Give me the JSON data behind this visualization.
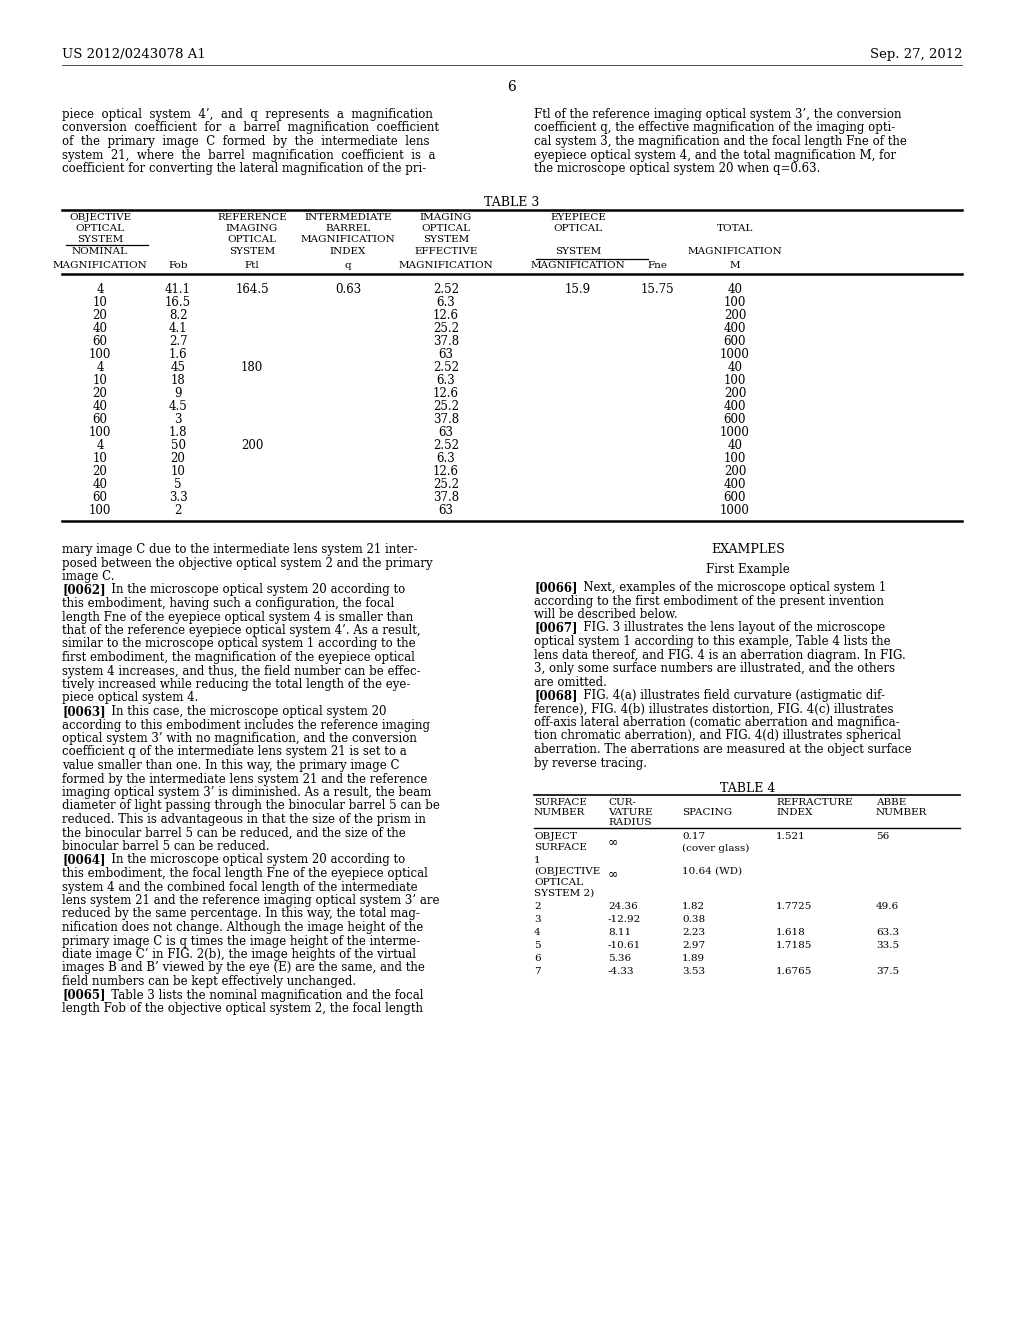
{
  "bg_color": "#ffffff",
  "header_left": "US 2012/0243078 A1",
  "header_right": "Sep. 27, 2012",
  "page_number": "6",
  "top_left_lines": [
    "piece  optical  system  4’,  and  q  represents  a  magnification",
    "conversion  coefficient  for  a  barrel  magnification  coefficient",
    "of  the  primary  image  C  formed  by  the  intermediate  lens",
    "system  21,  where  the  barrel  magnification  coefficient  is  a",
    "coefficient for converting the lateral magnification of the pri-"
  ],
  "top_right_lines": [
    "Ftl of the reference imaging optical system 3’, the conversion",
    "coefficient q, the effective magnification of the imaging opti-",
    "cal system 3, the magnification and the focal length Fne of the",
    "eyepiece optical system 4, and the total magnification M, for",
    "the microscope optical system 20 when q=0.63."
  ],
  "table3_title": "TABLE 3",
  "table3_data": [
    [
      "4",
      "41.1",
      "164.5",
      "0.63",
      "2.52",
      "15.9",
      "15.75",
      "40"
    ],
    [
      "10",
      "16.5",
      "",
      "",
      "6.3",
      "",
      "",
      "100"
    ],
    [
      "20",
      "8.2",
      "",
      "",
      "12.6",
      "",
      "",
      "200"
    ],
    [
      "40",
      "4.1",
      "",
      "",
      "25.2",
      "",
      "",
      "400"
    ],
    [
      "60",
      "2.7",
      "",
      "",
      "37.8",
      "",
      "",
      "600"
    ],
    [
      "100",
      "1.6",
      "",
      "",
      "63",
      "",
      "",
      "1000"
    ],
    [
      "4",
      "45",
      "180",
      "",
      "2.52",
      "",
      "",
      "40"
    ],
    [
      "10",
      "18",
      "",
      "",
      "6.3",
      "",
      "",
      "100"
    ],
    [
      "20",
      "9",
      "",
      "",
      "12.6",
      "",
      "",
      "200"
    ],
    [
      "40",
      "4.5",
      "",
      "",
      "25.2",
      "",
      "",
      "400"
    ],
    [
      "60",
      "3",
      "",
      "",
      "37.8",
      "",
      "",
      "600"
    ],
    [
      "100",
      "1.8",
      "",
      "",
      "63",
      "",
      "",
      "1000"
    ],
    [
      "4",
      "50",
      "200",
      "",
      "2.52",
      "",
      "",
      "40"
    ],
    [
      "10",
      "20",
      "",
      "",
      "6.3",
      "",
      "",
      "100"
    ],
    [
      "20",
      "10",
      "",
      "",
      "12.6",
      "",
      "",
      "200"
    ],
    [
      "40",
      "5",
      "",
      "",
      "25.2",
      "",
      "",
      "400"
    ],
    [
      "60",
      "3.3",
      "",
      "",
      "37.8",
      "",
      "",
      "600"
    ],
    [
      "100",
      "2",
      "",
      "",
      "63",
      "",
      "",
      "1000"
    ]
  ],
  "body_left_paras": [
    {
      "prefix": "",
      "text": "mary image C due to the intermediate lens system 21 inter-\nposed between the objective optical system 2 and the primary\nimage C."
    },
    {
      "prefix": "[0062]",
      "text": "   In the microscope optical system 20 according to\nthis embodiment, having such a configuration, the focal\nlength Fne of the eyepiece optical system 4 is smaller than\nthat of the reference eyepiece optical system 4’. As a result,\nsimilar to the microscope optical system 1 according to the\nfirst embodiment, the magnification of the eyepiece optical\nsystem 4 increases, and thus, the field number can be effec-\ntively increased while reducing the total length of the eye-\npiece optical system 4."
    },
    {
      "prefix": "[0063]",
      "text": "   In this case, the microscope optical system 20\naccording to this embodiment includes the reference imaging\noptical system 3’ with no magnification, and the conversion\ncoefficient q of the intermediate lens system 21 is set to a\nvalue smaller than one. In this way, the primary image C\nformed by the intermediate lens system 21 and the reference\nimaging optical system 3’ is diminished. As a result, the beam\ndiameter of light passing through the binocular barrel 5 can be\nreduced. This is advantageous in that the size of the prism in\nthe binocular barrel 5 can be reduced, and the size of the\nbinocular barrel 5 can be reduced."
    },
    {
      "prefix": "[0064]",
      "text": "   In the microscope optical system 20 according to\nthis embodiment, the focal length Fne of the eyepiece optical\nsystem 4 and the combined focal length of the intermediate\nlens system 21 and the reference imaging optical system 3’ are\nreduced by the same percentage. In this way, the total mag-\nnification does not change. Although the image height of the\nprimary image C is q times the image height of the interme-\ndiate image C’ in FIG. 2(b), the image heights of the virtual\nimages B and B’ viewed by the eye (E) are the same, and the\nfield numbers can be kept effectively unchanged."
    },
    {
      "prefix": "[0065]",
      "text": "   Table 3 lists the nominal magnification and the focal\nlength Fob of the objective optical system 2, the focal length"
    }
  ],
  "body_right_heading1": "EXAMPLES",
  "body_right_heading2": "First Example",
  "body_right_paras": [
    {
      "prefix": "[0066]",
      "text": "   Next, examples of the microscope optical system 1\naccording to the first embodiment of the present invention\nwill be described below."
    },
    {
      "prefix": "[0067]",
      "text": "   FIG. 3 illustrates the lens layout of the microscope\noptical system 1 according to this example, Table 4 lists the\nlens data thereof, and FIG. 4 is an aberration diagram. In FIG.\n3, only some surface numbers are illustrated, and the others\nare omitted."
    },
    {
      "prefix": "[0068]",
      "text": "   FIG. 4(a) illustrates field curvature (astigmatic dif-\nference), FIG. 4(b) illustrates distortion, FIG. 4(c) illustrates\noff-axis lateral aberration (comatic aberration and magnifica-\ntion chromatic aberration), and FIG. 4(d) illustrates spherical\naberration. The aberrations are measured at the object surface\nby reverse tracing."
    }
  ],
  "table4_title": "TABLE 4",
  "table4_data": [
    [
      "2",
      "24.36",
      "1.82",
      "1.7725",
      "49.6"
    ],
    [
      "3",
      "-12.92",
      "0.38",
      "",
      ""
    ],
    [
      "4",
      "8.11",
      "2.23",
      "1.618",
      "63.3"
    ],
    [
      "5",
      "-10.61",
      "2.97",
      "1.7185",
      "33.5"
    ],
    [
      "6",
      "5.36",
      "1.89",
      "",
      ""
    ],
    [
      "7",
      "-4.33",
      "3.53",
      "1.6765",
      "37.5"
    ]
  ]
}
